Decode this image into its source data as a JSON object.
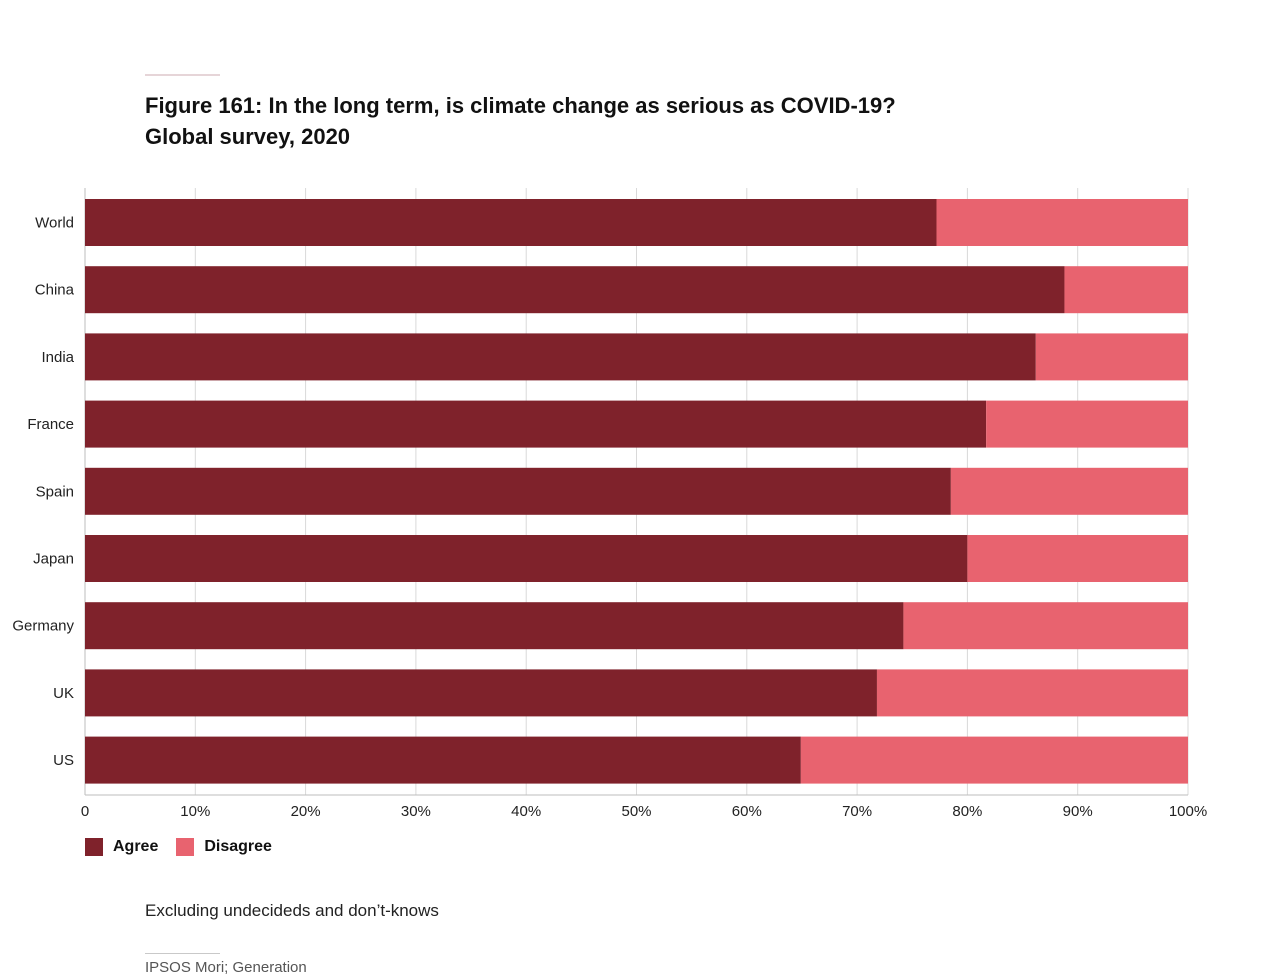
{
  "title": "Figure 161: In the long term, is climate change as serious as COVID-19? Global survey, 2020",
  "note": "Excluding undecideds and don’t-knows",
  "source": "IPSOS Mori; Generation",
  "colors": {
    "agree": "#7f222b",
    "disagree": "#e8636f",
    "grid": "#d9d9d9",
    "axis": "#bdbdbd"
  },
  "legend": [
    {
      "label": "Agree",
      "color": "#7f222b"
    },
    {
      "label": "Disagree",
      "color": "#e8636f"
    }
  ],
  "chart_data": {
    "type": "bar",
    "orientation": "horizontal",
    "stacked": true,
    "categories": [
      "World",
      "China",
      "India",
      "France",
      "Spain",
      "Japan",
      "Germany",
      "UK",
      "US"
    ],
    "series": [
      {
        "name": "Agree",
        "values": [
          77.2,
          88.8,
          86.2,
          81.7,
          78.5,
          80.0,
          74.2,
          71.8,
          64.9
        ]
      },
      {
        "name": "Disagree",
        "values": [
          22.8,
          11.2,
          13.8,
          18.3,
          21.5,
          20.0,
          25.8,
          28.2,
          35.1
        ]
      }
    ],
    "xlim": [
      0,
      100
    ],
    "xticks": [
      "0",
      "10%",
      "20%",
      "30%",
      "40%",
      "50%",
      "60%",
      "70%",
      "80%",
      "90%",
      "100%"
    ],
    "grid": true,
    "legend_position": "bottom-left"
  }
}
